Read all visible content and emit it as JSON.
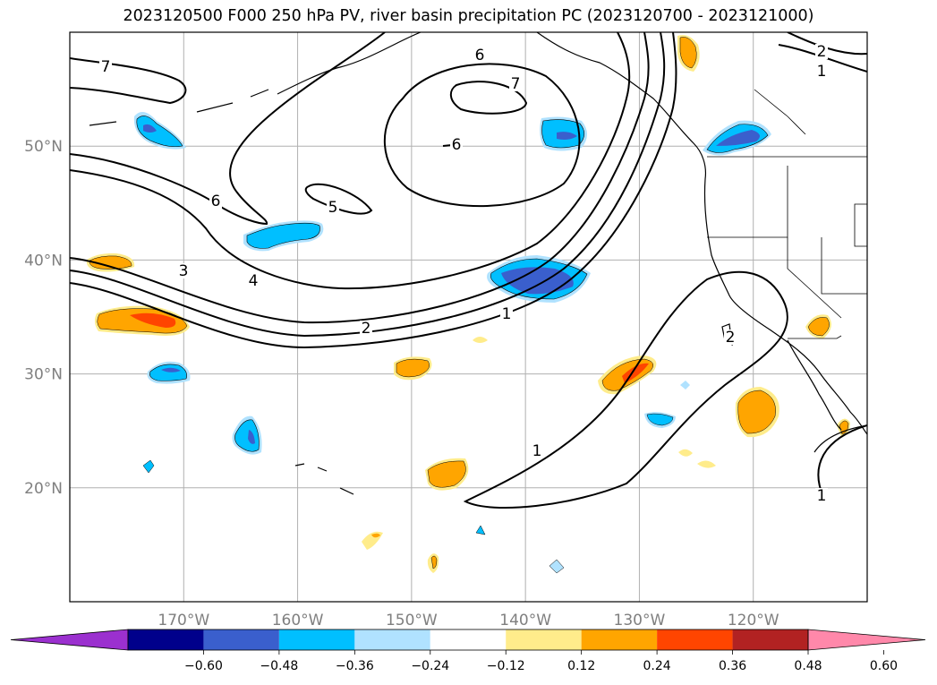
{
  "title": "2023120500 F000 250 hPa PV, river basin precipitation PC (2023120700 - 2023121000)",
  "map": {
    "lon_range": [
      -180,
      -110
    ],
    "lat_range": [
      10,
      60
    ],
    "lon_ticks": [
      {
        "lon": -170,
        "label": "170°W"
      },
      {
        "lon": -160,
        "label": "160°W"
      },
      {
        "lon": -150,
        "label": "150°W"
      },
      {
        "lon": -140,
        "label": "140°W"
      },
      {
        "lon": -130,
        "label": "130°W"
      },
      {
        "lon": -120,
        "label": "120°W"
      }
    ],
    "lat_ticks": [
      {
        "lat": 50,
        "label": "50°N"
      },
      {
        "lat": 40,
        "label": "40°N"
      },
      {
        "lat": 30,
        "label": "30°N"
      },
      {
        "lat": 20,
        "label": "20°N"
      }
    ],
    "gridlines": true,
    "pv_contour_labels": [
      "7",
      "6",
      "7",
      "6",
      "6",
      "5",
      "3",
      "4",
      "2",
      "1",
      "1",
      "2",
      "1",
      "2",
      "1"
    ]
  },
  "colorbar": {
    "ticks": [
      "−0.60",
      "−0.48",
      "−0.36",
      "−0.24",
      "−0.12",
      "0.12",
      "0.24",
      "0.36",
      "0.48",
      "0.60"
    ],
    "colors": [
      "#9b30cf",
      "#00008b",
      "#3a5fcd",
      "#00bfff",
      "#b0e2ff",
      "#ffffff",
      "#ffec8b",
      "#ffa500",
      "#ff4500",
      "#b22222",
      "#ff88aa"
    ]
  }
}
